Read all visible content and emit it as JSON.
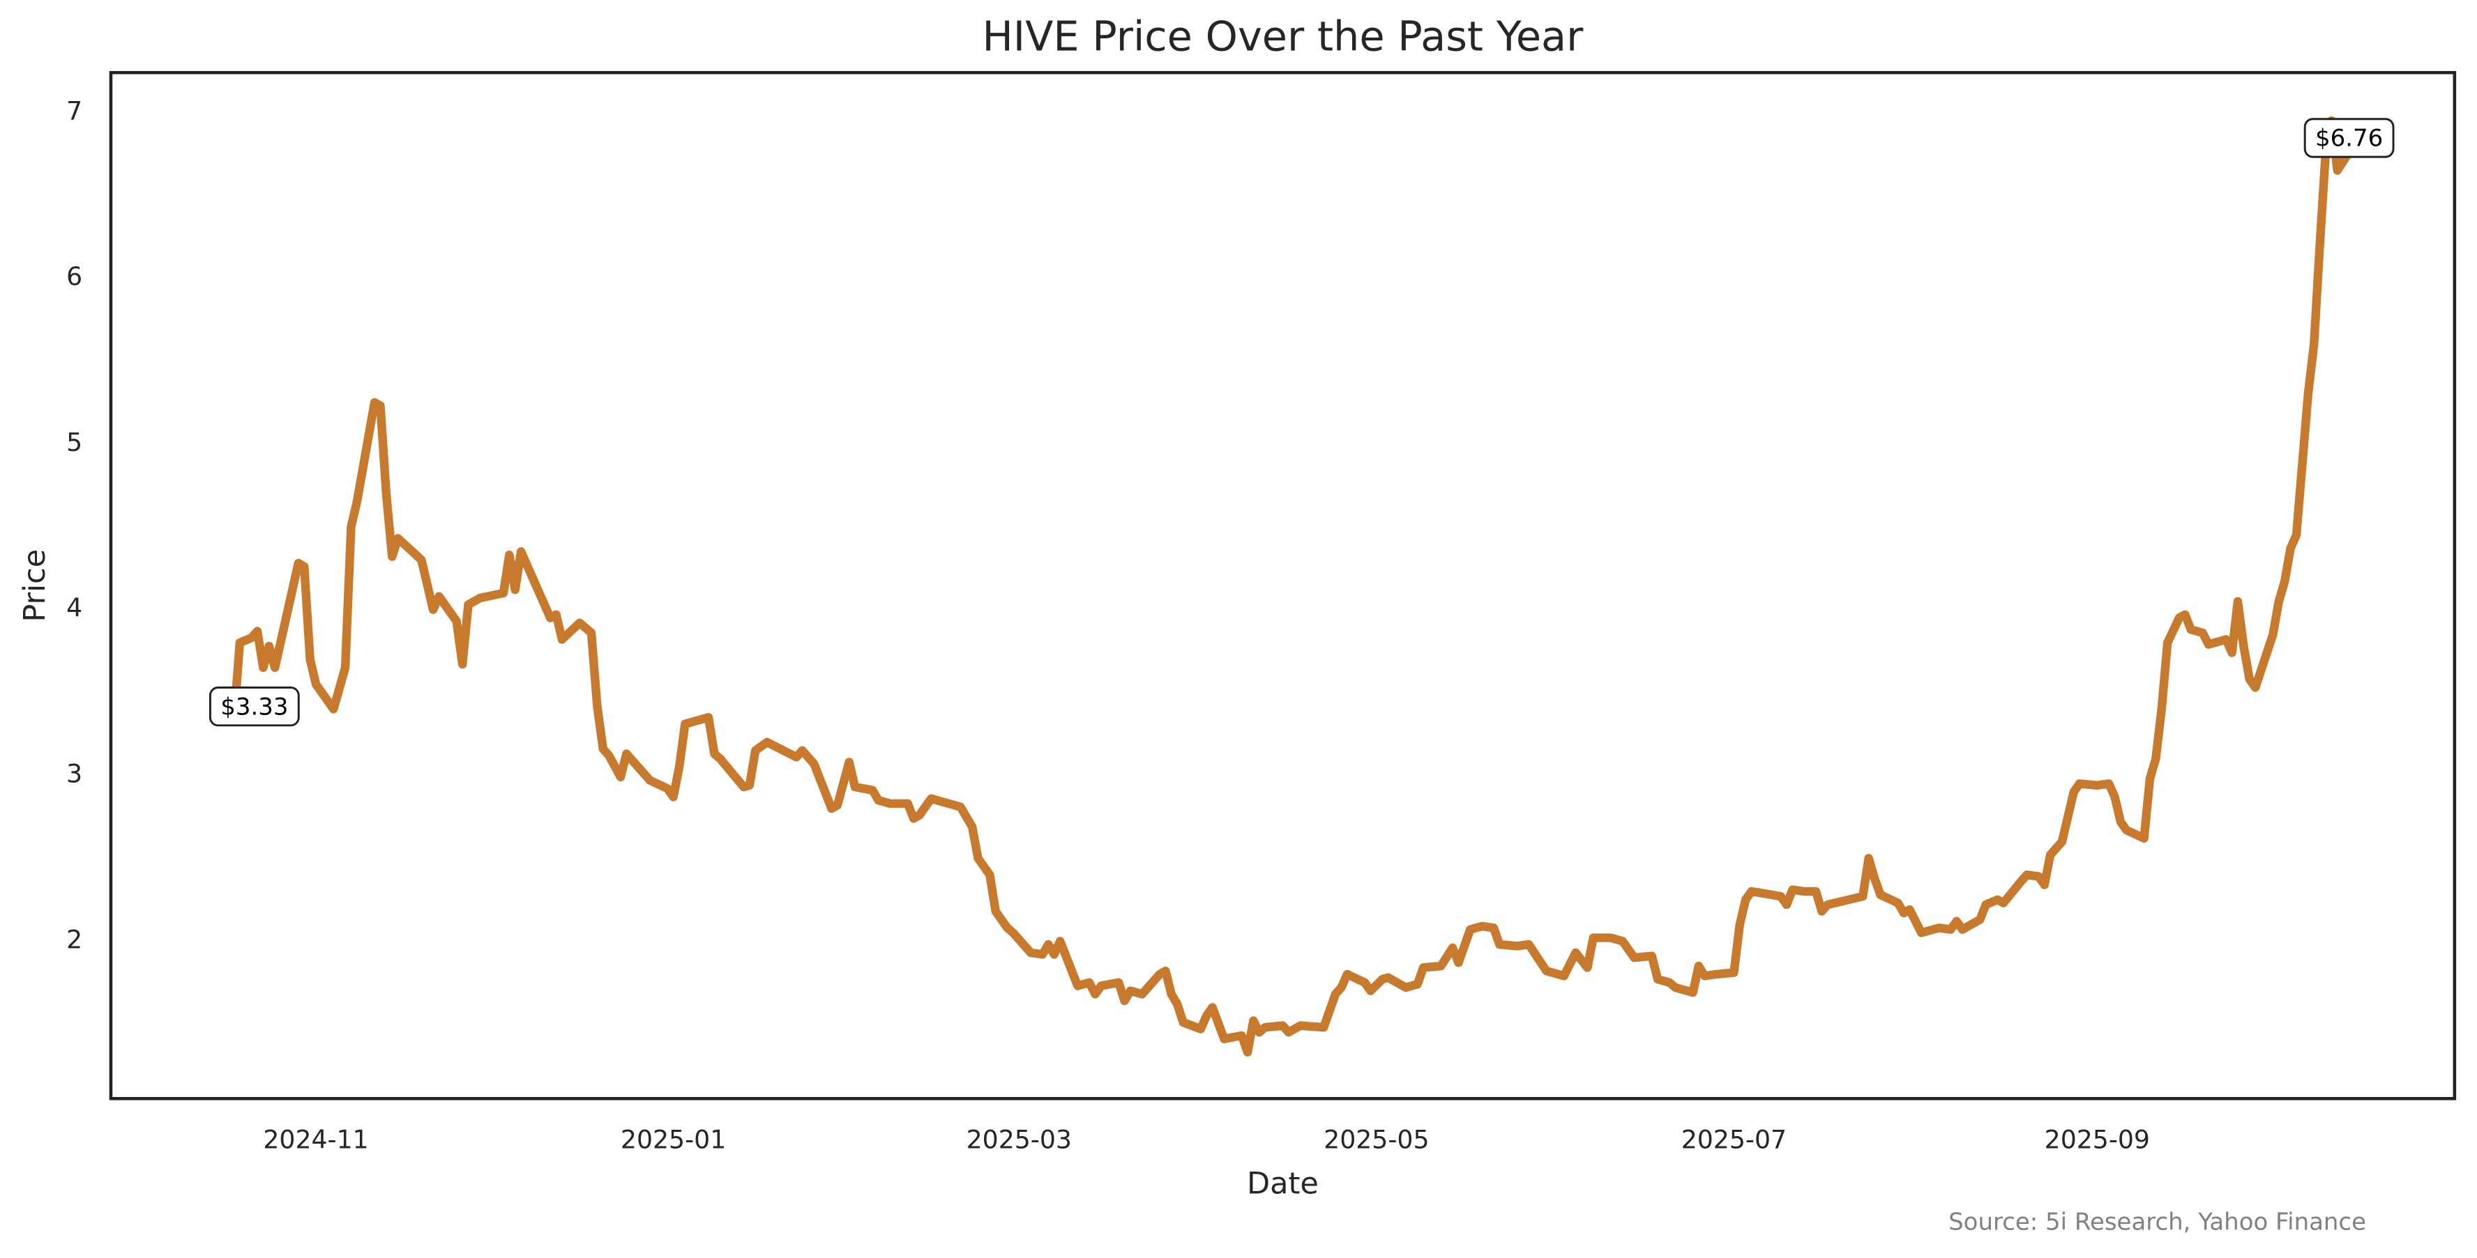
{
  "chart_data": {
    "type": "line",
    "title": "HIVE Price Over the Past Year",
    "x_label": "Date",
    "y_label": "Price",
    "source": "Source: 5i Research, Yahoo Finance",
    "color": "#c77a2e",
    "grid": false,
    "x": [
      -14,
      -13,
      -11,
      -10,
      -9,
      -8,
      -7,
      -3,
      -2,
      -1,
      0,
      3,
      5,
      6,
      7,
      10,
      11,
      12,
      13,
      14,
      18,
      20,
      21,
      24,
      25,
      26,
      28,
      32,
      33,
      34,
      35,
      40,
      41,
      42,
      45,
      47,
      48,
      49,
      50,
      52,
      53,
      57,
      60,
      61,
      62,
      63,
      67,
      68,
      69,
      73,
      74,
      75,
      77,
      82,
      83,
      85,
      88,
      89,
      91,
      92,
      95,
      96,
      98,
      101,
      102,
      103,
      105,
      110,
      112,
      113,
      115,
      116,
      118,
      119,
      122,
      124,
      125,
      126,
      127,
      130,
      132,
      133,
      134,
      137,
      138,
      139,
      141,
      144,
      145,
      146,
      147,
      148,
      151,
      152,
      153,
      155,
      158,
      159,
      160,
      161,
      162,
      165,
      166,
      168,
      172,
      174,
      175,
      176,
      179,
      180,
      182,
      183,
      186,
      188,
      189,
      192,
      194,
      195,
      197,
      199,
      201,
      202,
      205,
      207,
      210,
      213,
      215,
      217,
      218,
      221,
      223,
      225,
      228,
      229,
      231,
      232,
      235,
      236,
      237,
      239,
      242,
      243,
      244,
      245,
      250,
      251,
      252,
      254,
      256,
      257,
      258,
      264,
      265,
      266,
      267,
      270,
      271,
      272,
      274,
      277,
      279,
      280,
      281,
      284,
      285,
      287,
      288,
      291,
      292,
      294,
      295,
      296,
      298,
      300,
      301,
      304,
      306,
      307,
      308,
      309,
      312,
      313,
      314,
      315,
      316,
      318,
      319,
      320,
      322,
      323,
      326,
      327,
      328,
      329,
      330,
      331,
      334,
      335,
      336,
      337,
      338,
      340,
      341,
      342,
      343,
      344,
      345,
      347
    ],
    "values": [
      3.33,
      3.8,
      3.83,
      3.87,
      3.65,
      3.78,
      3.65,
      4.28,
      4.26,
      3.7,
      3.55,
      3.4,
      3.65,
      4.5,
      4.65,
      5.25,
      5.23,
      4.7,
      4.32,
      4.43,
      4.3,
      4.0,
      4.08,
      3.93,
      3.67,
      4.03,
      4.07,
      4.1,
      4.33,
      4.12,
      4.35,
      3.95,
      3.97,
      3.82,
      3.92,
      3.86,
      3.42,
      3.16,
      3.12,
      2.99,
      3.13,
      2.97,
      2.92,
      2.87,
      3.05,
      3.31,
      3.35,
      3.13,
      3.1,
      2.93,
      2.94,
      3.15,
      3.2,
      3.11,
      3.15,
      3.07,
      2.8,
      2.82,
      3.08,
      2.93,
      2.91,
      2.85,
      2.83,
      2.83,
      2.74,
      2.76,
      2.86,
      2.81,
      2.69,
      2.5,
      2.4,
      2.18,
      2.08,
      2.05,
      1.93,
      1.92,
      1.98,
      1.92,
      2.0,
      1.73,
      1.75,
      1.68,
      1.73,
      1.75,
      1.64,
      1.7,
      1.68,
      1.8,
      1.82,
      1.68,
      1.62,
      1.51,
      1.47,
      1.55,
      1.6,
      1.41,
      1.43,
      1.33,
      1.52,
      1.45,
      1.48,
      1.49,
      1.45,
      1.49,
      1.48,
      1.68,
      1.72,
      1.8,
      1.75,
      1.7,
      1.77,
      1.78,
      1.72,
      1.74,
      1.84,
      1.85,
      1.96,
      1.87,
      2.07,
      2.09,
      2.08,
      1.98,
      1.97,
      1.98,
      1.82,
      1.79,
      1.93,
      1.84,
      2.02,
      2.02,
      2.0,
      1.9,
      1.91,
      1.77,
      1.75,
      1.72,
      1.69,
      1.85,
      1.79,
      1.8,
      1.81,
      2.1,
      2.25,
      2.3,
      2.27,
      2.22,
      2.31,
      2.3,
      2.3,
      2.18,
      2.22,
      2.27,
      2.5,
      2.38,
      2.28,
      2.23,
      2.17,
      2.19,
      2.05,
      2.08,
      2.07,
      2.12,
      2.07,
      2.13,
      2.22,
      2.25,
      2.23,
      2.36,
      2.4,
      2.39,
      2.34,
      2.52,
      2.6,
      2.9,
      2.95,
      2.94,
      2.95,
      2.87,
      2.72,
      2.67,
      2.62,
      2.98,
      3.1,
      3.4,
      3.8,
      3.95,
      3.97,
      3.88,
      3.86,
      3.79,
      3.82,
      3.74,
      4.05,
      3.78,
      3.58,
      3.53,
      3.85,
      4.05,
      4.17,
      4.37,
      4.45,
      5.3,
      5.6,
      6.2,
      6.76,
      6.95,
      6.65,
      6.76
    ],
    "annotations": [
      {
        "label": "$3.33",
        "x": -14,
        "value": 3.33
      },
      {
        "label": "$6.76",
        "x": 347,
        "value": 6.76
      }
    ],
    "xlim": [
      -35,
      365
    ],
    "xticks": [
      {
        "value": 0,
        "label": "2024-11"
      },
      {
        "value": 61,
        "label": "2025-01"
      },
      {
        "value": 120,
        "label": "2025-03"
      },
      {
        "value": 181,
        "label": "2025-05"
      },
      {
        "value": 242,
        "label": "2025-07"
      },
      {
        "value": 304,
        "label": "2025-09"
      }
    ],
    "ylim": [
      1.05,
      7.24
    ],
    "yticks": [
      2,
      3,
      4,
      5,
      6,
      7
    ]
  }
}
